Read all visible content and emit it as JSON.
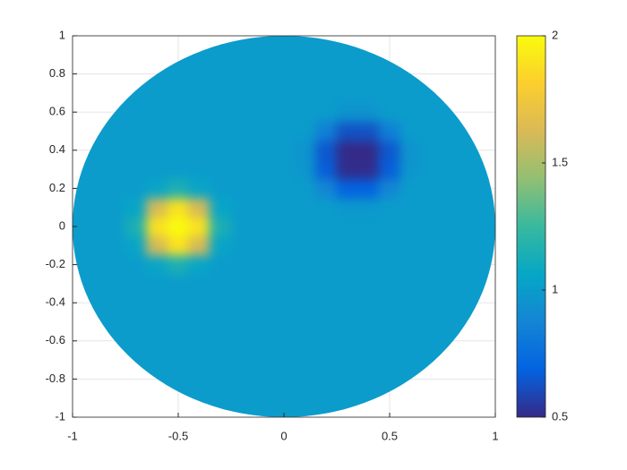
{
  "chart_data": {
    "type": "heatmap",
    "x": [
      -1,
      -0.9,
      -0.8,
      -0.7,
      -0.6,
      -0.5,
      -0.4,
      -0.3,
      -0.2,
      -0.1,
      0,
      0.1,
      0.2,
      0.3,
      0.4,
      0.5,
      0.6,
      0.7,
      0.8,
      0.9,
      1
    ],
    "y": [
      -1,
      -0.9,
      -0.8,
      -0.7,
      -0.6,
      -0.5,
      -0.4,
      -0.3,
      -0.2,
      -0.1,
      0,
      0.1,
      0.2,
      0.3,
      0.4,
      0.5,
      0.6,
      0.7,
      0.8,
      0.9,
      1
    ],
    "values": [
      [
        null,
        null,
        null,
        null,
        null,
        null,
        null,
        1,
        1,
        1,
        1,
        1,
        1,
        1,
        null,
        null,
        null,
        null,
        null,
        null,
        null
      ],
      [
        null,
        null,
        null,
        null,
        null,
        1,
        1,
        1,
        1,
        1,
        1,
        1,
        1,
        1,
        1,
        1,
        null,
        null,
        null,
        null,
        null
      ],
      [
        null,
        null,
        null,
        1,
        1,
        1,
        1,
        1,
        1,
        1,
        1,
        1,
        1,
        1,
        1,
        1,
        1,
        1,
        null,
        null,
        null
      ],
      [
        null,
        null,
        1,
        1,
        1,
        1,
        1,
        1,
        1,
        1,
        1,
        1,
        1,
        1,
        1,
        1,
        1,
        1,
        1,
        null,
        null
      ],
      [
        null,
        null,
        1,
        1,
        1,
        1,
        1,
        1,
        1,
        1,
        1,
        1,
        1,
        1,
        1,
        1,
        1,
        1,
        1,
        null,
        null
      ],
      [
        null,
        1,
        1,
        1,
        1,
        1,
        1,
        1,
        1,
        1,
        1,
        1,
        1,
        1,
        1,
        1,
        1,
        1,
        1,
        1,
        null
      ],
      [
        null,
        1,
        1,
        1,
        1,
        1,
        1,
        1,
        1,
        1,
        1,
        1,
        1,
        1,
        1,
        1,
        1,
        1,
        1,
        1,
        null
      ],
      [
        1,
        1,
        1,
        1,
        1,
        1,
        1,
        1,
        1,
        1,
        1,
        1,
        1,
        1,
        1,
        1,
        1,
        1,
        1,
        1,
        1
      ],
      [
        1,
        1,
        1,
        1,
        1.05,
        1.15,
        1.05,
        1,
        1,
        1,
        1,
        1,
        1,
        1,
        1,
        1,
        1,
        1,
        1,
        1,
        1
      ],
      [
        1,
        1,
        1,
        1.05,
        1.62,
        1.89,
        1.62,
        1.05,
        1,
        1,
        1,
        1,
        1,
        1,
        1,
        1,
        1,
        1,
        1,
        1,
        1
      ],
      [
        1,
        1,
        1,
        1.15,
        1.89,
        2,
        1.89,
        1.15,
        1,
        1,
        1,
        1,
        1,
        1,
        1,
        1,
        1,
        1,
        1,
        1,
        1
      ],
      [
        1,
        1,
        1,
        1.05,
        1.62,
        1.89,
        1.62,
        1.05,
        1,
        1,
        1,
        1,
        1,
        0.98,
        0.98,
        1,
        1,
        1,
        1,
        1,
        1
      ],
      [
        1,
        1,
        1,
        1,
        1.05,
        1.15,
        1.05,
        1,
        1,
        1,
        1,
        1,
        0.88,
        0.69,
        0.69,
        0.88,
        1,
        1,
        1,
        1,
        1
      ],
      [
        1,
        1,
        1,
        1,
        1,
        1,
        1,
        1,
        1,
        1,
        1,
        0.97,
        0.67,
        0.51,
        0.51,
        0.67,
        0.97,
        1,
        1,
        1,
        1
      ],
      [
        null,
        1,
        1,
        1,
        1,
        1,
        1,
        1,
        1,
        1,
        1,
        0.96,
        0.65,
        0.5,
        0.5,
        0.65,
        0.96,
        1,
        1,
        1,
        null
      ],
      [
        null,
        1,
        1,
        1,
        1,
        1,
        1,
        1,
        1,
        1,
        1,
        1,
        0.84,
        0.63,
        0.63,
        0.84,
        1,
        1,
        1,
        1,
        null
      ],
      [
        null,
        null,
        1,
        1,
        1,
        1,
        1,
        1,
        1,
        1,
        1,
        1,
        1,
        0.95,
        0.95,
        1,
        1,
        1,
        1,
        null,
        null
      ],
      [
        null,
        null,
        1,
        1,
        1,
        1,
        1,
        1,
        1,
        1,
        1,
        1,
        1,
        1,
        1,
        1,
        1,
        1,
        1,
        null,
        null
      ],
      [
        null,
        null,
        null,
        1,
        1,
        1,
        1,
        1,
        1,
        1,
        1,
        1,
        1,
        1,
        1,
        1,
        1,
        1,
        null,
        null,
        null
      ],
      [
        null,
        null,
        null,
        null,
        null,
        1,
        1,
        1,
        1,
        1,
        1,
        1,
        1,
        1,
        1,
        1,
        null,
        null,
        null,
        null,
        null
      ],
      [
        null,
        null,
        null,
        null,
        null,
        null,
        null,
        1,
        1,
        1,
        1,
        1,
        1,
        1,
        null,
        null,
        null,
        null,
        null,
        null,
        null
      ]
    ],
    "xlim": [
      -1,
      1
    ],
    "xticks": [
      -1,
      -0.5,
      0,
      0.5,
      1
    ],
    "ylim": [
      -1,
      1
    ],
    "yticks": [
      -1,
      -0.8,
      -0.6,
      -0.4,
      -0.2,
      0,
      0.2,
      0.4,
      0.6,
      0.8,
      1
    ],
    "clim": [
      0.5,
      2
    ],
    "cticks": [
      0.5,
      1,
      1.5,
      2
    ],
    "colormap": [
      "#352a87",
      "#0363e1",
      "#1485d4",
      "#06a7c6",
      "#38b99e",
      "#92bf73",
      "#d9ba56",
      "#fcce2e",
      "#f9fb0e"
    ],
    "grid": true
  }
}
